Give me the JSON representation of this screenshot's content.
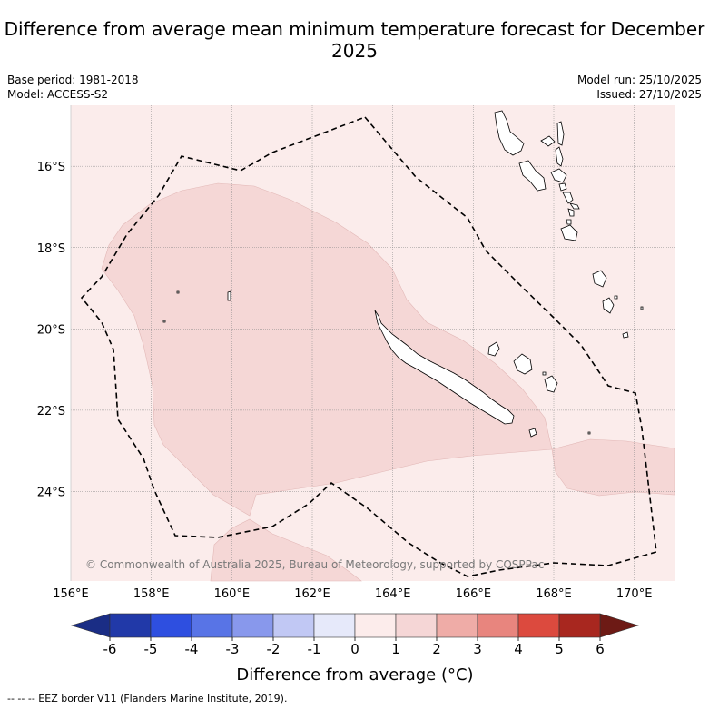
{
  "title": "Difference from average mean minimum temperature forecast for December 2025",
  "meta_left": {
    "base_period": "Base period: 1981-2018",
    "model": "Model: ACCESS-S2"
  },
  "meta_right": {
    "model_run": "Model run: 25/10/2025",
    "issued": "Issued: 27/10/2025"
  },
  "copyright": "© Commonwealth of Australia 2025, Bureau of Meteorology, supported by COSPPac",
  "map": {
    "lon_range": [
      156,
      171
    ],
    "lat_range": [
      -26.2,
      -14.5
    ],
    "lon_ticks": [
      156,
      158,
      160,
      162,
      164,
      166,
      168,
      170
    ],
    "lon_tick_labels": [
      "156°E",
      "158°E",
      "160°E",
      "162°E",
      "164°E",
      "166°E",
      "168°E",
      "170°E"
    ],
    "lat_ticks": [
      -16,
      -18,
      -20,
      -22,
      -24
    ],
    "lat_tick_labels": [
      "16°S",
      "18°S",
      "20°S",
      "22°S",
      "24°S"
    ],
    "background_category": "0 to 1 °C",
    "shaded_category": "1 to 2 °C"
  },
  "legend": {
    "label": "Difference from average (°C)",
    "boundaries": [
      -6,
      -5,
      -4,
      -3,
      -2,
      -1,
      0,
      1,
      2,
      3,
      4,
      5,
      6
    ],
    "tick_labels": [
      "-6",
      "-5",
      "-4",
      "-3",
      "-2",
      "-1",
      "0",
      "1",
      "2",
      "3",
      "4",
      "5",
      "6"
    ],
    "colors": [
      "#2139a8",
      "#2e4fe0",
      "#5874e6",
      "#8898ec",
      "#c1c8f4",
      "#e6e9fa",
      "#fceceb",
      "#f5d6d6",
      "#efaca7",
      "#e8857e",
      "#dc4a3e",
      "#a8271f"
    ],
    "under_color": "#1a2d85",
    "over_color": "#6d1a15"
  },
  "footer_note": "-- -- -- EEZ border V11 (Flanders Marine Institute, 2019)."
}
